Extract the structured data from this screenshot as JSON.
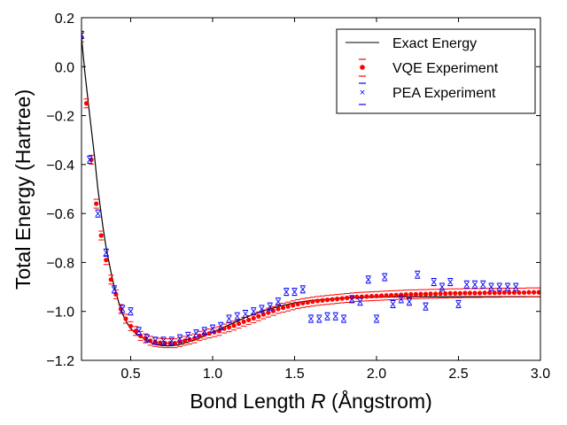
{
  "chart_data": {
    "type": "scatter",
    "title": "",
    "xlabel": "Bond Length R (Ångstrom)",
    "xlabel_parts": {
      "before": "Bond Length ",
      "symbol": "R",
      "after": " (Ångstrom)"
    },
    "ylabel": "Total Energy (Hartree)",
    "xlim": [
      0.2,
      3.0
    ],
    "ylim": [
      -1.2,
      0.2
    ],
    "grid": false,
    "legend_position": "top-right",
    "x_ticks": [
      "0.5",
      "1.0",
      "1.5",
      "2.0",
      "2.5",
      "3.0"
    ],
    "x_tick_values": [
      0.5,
      1.0,
      1.5,
      2.0,
      2.5,
      3.0
    ],
    "y_ticks": [
      "0.2",
      "0.0",
      "−0.2",
      "−0.4",
      "−0.6",
      "−0.8",
      "−1.0",
      "−1.2"
    ],
    "y_tick_values": [
      0.2,
      0.0,
      -0.2,
      -0.4,
      -0.6,
      -0.8,
      -1.0,
      -1.2
    ],
    "series": [
      {
        "name": "Exact Energy",
        "style": "line",
        "color": "#000000",
        "x": [
          0.2,
          0.22,
          0.25,
          0.28,
          0.3,
          0.33,
          0.35,
          0.38,
          0.4,
          0.43,
          0.45,
          0.48,
          0.5,
          0.53,
          0.55,
          0.58,
          0.6,
          0.63,
          0.65,
          0.68,
          0.7,
          0.73,
          0.75,
          0.78,
          0.8,
          0.85,
          0.9,
          0.95,
          1.0,
          1.05,
          1.1,
          1.15,
          1.2,
          1.3,
          1.4,
          1.5,
          1.6,
          1.7,
          1.8,
          1.9,
          2.0,
          2.2,
          2.4,
          2.6,
          2.8,
          3.0
        ],
        "y": [
          0.12,
          -0.02,
          -0.2,
          -0.37,
          -0.5,
          -0.65,
          -0.74,
          -0.84,
          -0.9,
          -0.97,
          -1.01,
          -1.05,
          -1.07,
          -1.09,
          -1.1,
          -1.11,
          -1.12,
          -1.13,
          -1.135,
          -1.138,
          -1.14,
          -1.141,
          -1.14,
          -1.138,
          -1.135,
          -1.125,
          -1.115,
          -1.1,
          -1.085,
          -1.07,
          -1.055,
          -1.04,
          -1.025,
          -1.0,
          -0.98,
          -0.965,
          -0.955,
          -0.95,
          -0.945,
          -0.943,
          -0.942,
          -0.94,
          -0.94,
          -0.94,
          -0.94,
          -0.94
        ]
      },
      {
        "name": "VQE Experiment",
        "style": "dots",
        "color": "#ff0000",
        "x": [
          0.2,
          0.23,
          0.26,
          0.29,
          0.32,
          0.35,
          0.38,
          0.41,
          0.44,
          0.47,
          0.5,
          0.53,
          0.56,
          0.59,
          0.62,
          0.65,
          0.68,
          0.71,
          0.74,
          0.77,
          0.8,
          0.83,
          0.86,
          0.89,
          0.92,
          0.95,
          0.98,
          1.01,
          1.04,
          1.07,
          1.1,
          1.13,
          1.16,
          1.19,
          1.22,
          1.25,
          1.28,
          1.31,
          1.34,
          1.37,
          1.4,
          1.43,
          1.46,
          1.49,
          1.52,
          1.55,
          1.58,
          1.61,
          1.64,
          1.67,
          1.7,
          1.73,
          1.76,
          1.79,
          1.82,
          1.85,
          1.88,
          1.91,
          1.94,
          1.97,
          2.0,
          2.03,
          2.06,
          2.09,
          2.12,
          2.15,
          2.18,
          2.21,
          2.24,
          2.27,
          2.3,
          2.33,
          2.36,
          2.39,
          2.42,
          2.45,
          2.48,
          2.51,
          2.54,
          2.57,
          2.6,
          2.63,
          2.66,
          2.69,
          2.72,
          2.75,
          2.78,
          2.81,
          2.84,
          2.87,
          2.9,
          2.93,
          2.96,
          2.99
        ],
        "y": [
          0.12,
          -0.15,
          -0.38,
          -0.56,
          -0.69,
          -0.79,
          -0.87,
          -0.93,
          -0.99,
          -1.03,
          -1.06,
          -1.08,
          -1.1,
          -1.11,
          -1.12,
          -1.125,
          -1.128,
          -1.13,
          -1.13,
          -1.13,
          -1.125,
          -1.12,
          -1.115,
          -1.11,
          -1.1,
          -1.095,
          -1.09,
          -1.085,
          -1.08,
          -1.07,
          -1.065,
          -1.058,
          -1.05,
          -1.042,
          -1.035,
          -1.028,
          -1.02,
          -1.012,
          -1.005,
          -0.998,
          -0.99,
          -0.985,
          -0.98,
          -0.975,
          -0.97,
          -0.966,
          -0.963,
          -0.96,
          -0.957,
          -0.955,
          -0.953,
          -0.951,
          -0.949,
          -0.947,
          -0.945,
          -0.943,
          -0.941,
          -0.94,
          -0.939,
          -0.938,
          -0.937,
          -0.936,
          -0.935,
          -0.934,
          -0.933,
          -0.932,
          -0.931,
          -0.93,
          -0.93,
          -0.929,
          -0.929,
          -0.928,
          -0.928,
          -0.927,
          -0.927,
          -0.926,
          -0.926,
          -0.926,
          -0.925,
          -0.925,
          -0.925,
          -0.925,
          -0.924,
          -0.924,
          -0.924,
          -0.924,
          -0.923,
          -0.923,
          -0.923,
          -0.923,
          -0.923,
          -0.922,
          -0.922,
          -0.922
        ]
      },
      {
        "name": "PEA Experiment",
        "style": "errorbar",
        "color": "#0000ff",
        "x": [
          0.2,
          0.25,
          0.3,
          0.35,
          0.4,
          0.45,
          0.5,
          0.55,
          0.6,
          0.65,
          0.7,
          0.75,
          0.8,
          0.85,
          0.9,
          0.95,
          1.0,
          1.05,
          1.1,
          1.15,
          1.2,
          1.25,
          1.3,
          1.35,
          1.4,
          1.45,
          1.5,
          1.55,
          1.6,
          1.65,
          1.7,
          1.75,
          1.8,
          1.85,
          1.9,
          1.95,
          2.0,
          2.05,
          2.1,
          2.15,
          2.2,
          2.25,
          2.3,
          2.35,
          2.4,
          2.45,
          2.5,
          2.55,
          2.6,
          2.65,
          2.7,
          2.75,
          2.8,
          2.85
        ],
        "y": [
          0.13,
          -0.38,
          -0.6,
          -0.76,
          -0.91,
          -0.99,
          -1.0,
          -1.08,
          -1.11,
          -1.12,
          -1.12,
          -1.12,
          -1.11,
          -1.1,
          -1.09,
          -1.08,
          -1.07,
          -1.06,
          -1.03,
          -1.02,
          -1.01,
          -1.0,
          -0.99,
          -0.98,
          -0.96,
          -0.92,
          -0.92,
          -0.91,
          -1.03,
          -1.03,
          -1.02,
          -1.02,
          -1.03,
          -0.95,
          -0.96,
          -0.87,
          -1.03,
          -0.86,
          -0.97,
          -0.95,
          -0.96,
          -0.85,
          -0.98,
          -0.88,
          -0.9,
          -0.88,
          -0.97,
          -0.89,
          -0.89,
          -0.89,
          -0.9,
          -0.9,
          -0.9,
          -0.9
        ]
      }
    ]
  }
}
